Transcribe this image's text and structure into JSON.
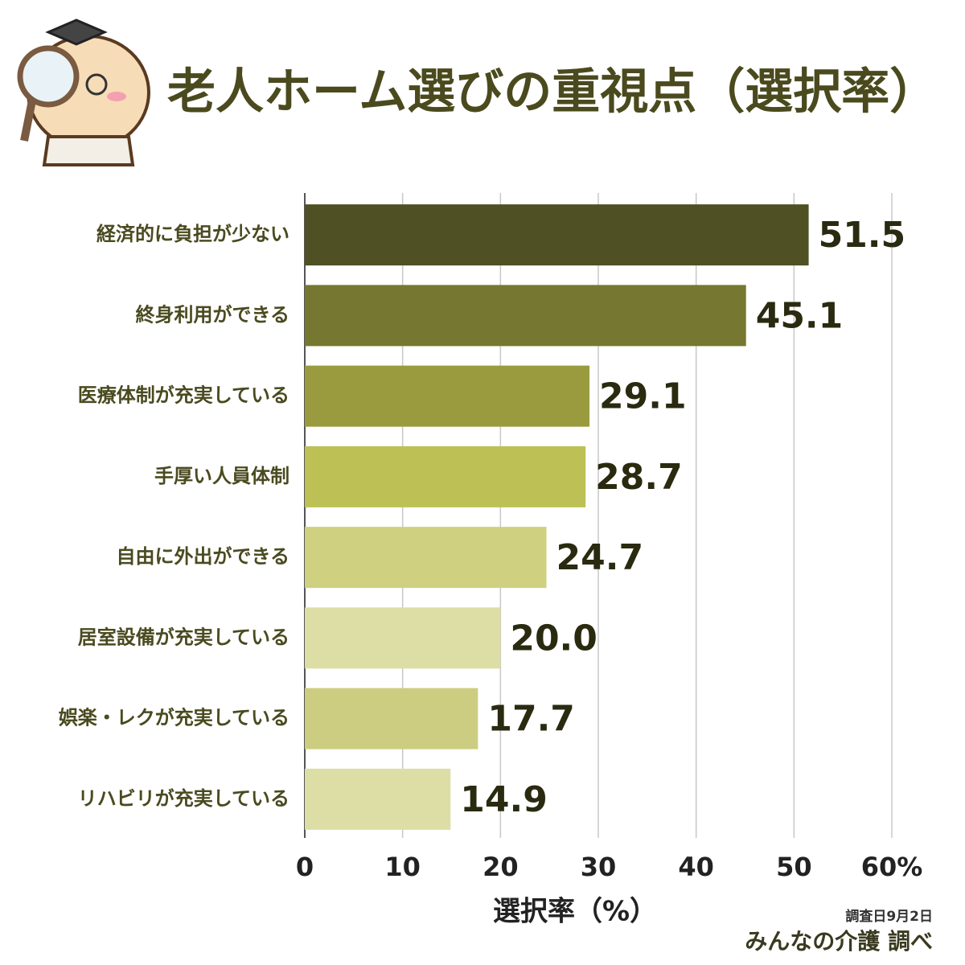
{
  "chart_data": {
    "type": "barh",
    "title": "老人ホーム選びの重視点（選択率）",
    "x_label": "選択率（%）",
    "categories": [
      "経済的に負担が少ない",
      "終身利用ができる",
      "医療体制が充実している",
      "手厚い人員体制",
      "自由に外出ができる",
      "居室設備が充実している",
      "娯楽・レクが充実している",
      "リハビリが充実している"
    ],
    "values": [
      51.5,
      45.1,
      29.1,
      28.7,
      24.7,
      20.0,
      17.7,
      14.9
    ],
    "value_labels": [
      "51.5",
      "45.1",
      "29.1",
      "28.7",
      "24.7",
      "20.0",
      "17.7",
      "14.9"
    ],
    "colors": [
      "#4f5024",
      "#767730",
      "#9a9b3e",
      "#bdc055",
      "#cfd080",
      "#dcdea6",
      "#cccd80",
      "#dcdea6"
    ],
    "xlim": [
      0,
      60
    ],
    "xticks": [
      0,
      10,
      20,
      30,
      40,
      50,
      {
        "value": 60,
        "label": "60%"
      }
    ],
    "grid": true,
    "survey_date": "調査日9月2日",
    "source": "みんなの介護 調べ"
  }
}
